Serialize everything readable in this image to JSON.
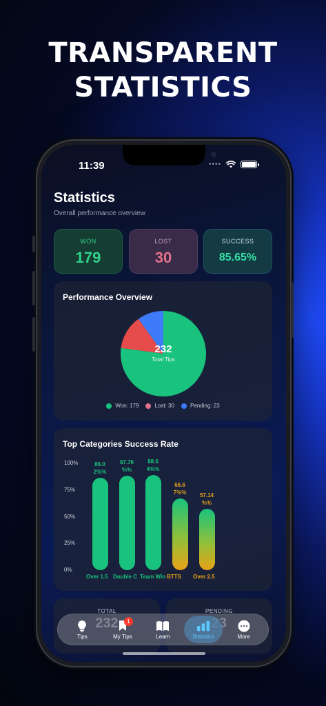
{
  "headline": {
    "line1": "TRANSPARENT",
    "line2": "STATISTICS"
  },
  "status_bar": {
    "time": "11:39"
  },
  "page": {
    "title": "Statistics",
    "subtitle": "Overall performance overview"
  },
  "stats": {
    "won": {
      "label": "WON",
      "value": "179"
    },
    "lost": {
      "label": "LOST",
      "value": "30"
    },
    "success": {
      "label": "SUCCESS",
      "value": "85.65%"
    }
  },
  "performance": {
    "title": "Performance Overview",
    "total_value": "232",
    "total_label": "Total Tips",
    "legend": [
      {
        "label": "Won: 179",
        "color": "#19c37d"
      },
      {
        "label": "Lost: 30",
        "color": "#e0718a"
      },
      {
        "label": "Pending: 23",
        "color": "#3d7bfa"
      }
    ]
  },
  "categories": {
    "title": "Top Categories Success Rate",
    "y_ticks": [
      "100%",
      "75%",
      "50%",
      "25%",
      "0%"
    ]
  },
  "chart_data": [
    {
      "type": "pie",
      "title": "Performance Overview",
      "categories": [
        "Won",
        "Lost",
        "Pending"
      ],
      "values": [
        179,
        30,
        23
      ],
      "colors": [
        "#19c37d",
        "#e74c4c",
        "#3d7bfa"
      ]
    },
    {
      "type": "bar",
      "title": "Top Categories Success Rate",
      "categories": [
        "Over 1.5",
        "Double C",
        "Team Win",
        "BTTS",
        "Over 2.5"
      ],
      "values": [
        86.02,
        87.76,
        88.64,
        66.67,
        57.14
      ],
      "value_labels": [
        "86.0\n2%%",
        "87.76\n%%",
        "88.6\n4%%",
        "66.6\n7%%",
        "57.14\n%%"
      ],
      "ylim": [
        0,
        100
      ],
      "colors": [
        "#19c37d",
        "#19c37d",
        "#19c37d",
        "gradient-green-orange",
        "gradient-green-orange"
      ]
    }
  ],
  "bottom_cards": {
    "total": {
      "label": "TOTAL",
      "value": "232"
    },
    "pending": {
      "label": "PENDING",
      "value": "23"
    }
  },
  "tabbar": {
    "tabs": [
      {
        "label": "Tips",
        "icon": "lightbulb-icon"
      },
      {
        "label": "My Tips",
        "icon": "bookmark-icon",
        "badge": "1"
      },
      {
        "label": "Learn",
        "icon": "book-icon"
      },
      {
        "label": "Statistics",
        "icon": "bar-chart-icon",
        "active": true
      },
      {
        "label": "More",
        "icon": "more-icon"
      }
    ]
  }
}
